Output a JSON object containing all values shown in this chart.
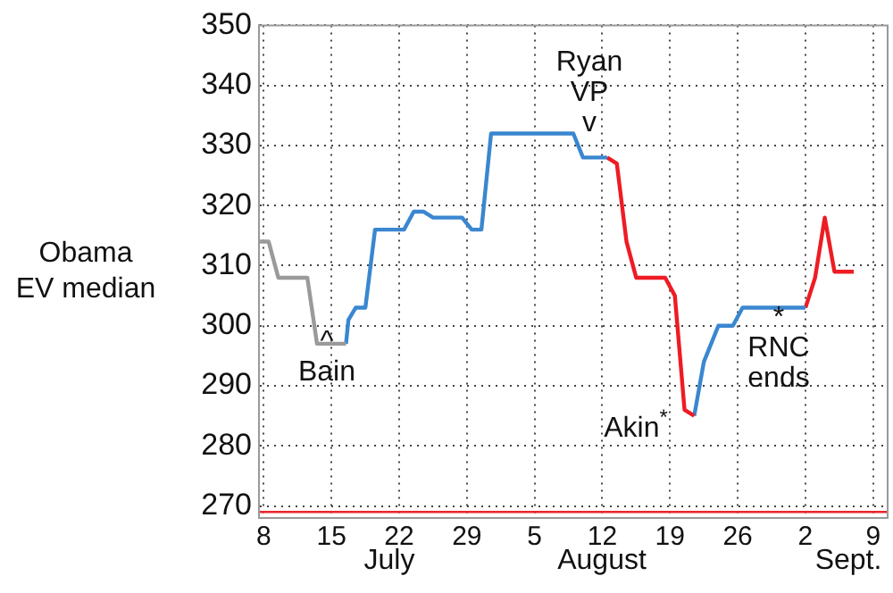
{
  "chart_data": {
    "type": "line",
    "ylabel": "Obama\nEV median",
    "series": [
      {
        "color": "#9a9a9a",
        "x": [
          "--07-07T12:00",
          "--07-08T12:00",
          "--07-09T12:00",
          "--07-12T12:00",
          "--07-13T12:00",
          "--07-16T12:00"
        ],
        "values": [
          314,
          314,
          308,
          308,
          297,
          297
        ]
      },
      {
        "color": "#3a87d0",
        "x": [
          "--07-16T12:00",
          "--07-16T18:00",
          "--07-17T12:00",
          "--07-18T12:00",
          "--07-19T12:00",
          "--07-22T12:00",
          "--07-23T12:00",
          "--07-24T12:00",
          "--07-25T12:00",
          "--07-28T12:00",
          "--07-29T12:00",
          "--07-30T12:00",
          "--07-31T12:00",
          "--08-09",
          "--08-10",
          "--08-12T12:00"
        ],
        "values": [
          297,
          301,
          303,
          303,
          316,
          316,
          319,
          319,
          318,
          318,
          316,
          316,
          332,
          332,
          328,
          328
        ]
      },
      {
        "color": "#ee1c24",
        "x": [
          "--08-12T12:00",
          "--08-13T12:00",
          "--08-14T12:00",
          "--08-15T12:00",
          "--08-18T12:00",
          "--08-19T12:00",
          "--08-20T12:00",
          "--08-21T12:00"
        ],
        "values": [
          328,
          327,
          314,
          308,
          308,
          305,
          286,
          285
        ]
      },
      {
        "color": "#3a87d0",
        "x": [
          "--08-21T12:00",
          "--08-22T12:00",
          "--08-24",
          "--08-25T12:00",
          "--08-26T12:00",
          "--09-02"
        ],
        "values": [
          285,
          294,
          300,
          300,
          303,
          303
        ]
      },
      {
        "color": "#ee1c24",
        "x": [
          "--09-02",
          "--09-03",
          "--09-04",
          "--09-05",
          "--09-07"
        ],
        "values": [
          303,
          308,
          318,
          309,
          309
        ]
      }
    ],
    "xlim": [
      "--07-07T12:00",
      "--09-10T12:00"
    ],
    "xticks": [
      {
        "value": "--07-08",
        "label": "8"
      },
      {
        "value": "--07-15",
        "label": "15"
      },
      {
        "value": "--07-22",
        "label": "22"
      },
      {
        "value": "--07-29",
        "label": "29"
      },
      {
        "value": "--08-05",
        "label": "5"
      },
      {
        "value": "--08-12",
        "label": "12"
      },
      {
        "value": "--08-19",
        "label": "19"
      },
      {
        "value": "--08-26",
        "label": "26"
      },
      {
        "value": "--09-02",
        "label": "2"
      },
      {
        "value": "--09-09",
        "label": "9"
      }
    ],
    "ylim": [
      268,
      350
    ],
    "yticks": [
      270,
      280,
      290,
      300,
      310,
      320,
      330,
      340,
      350
    ],
    "ref_lines": [
      {
        "axis": "y",
        "value": 269,
        "color": "#e8262b"
      }
    ],
    "annotations": [
      "^\nBain",
      "Ryan\nVP\nv",
      "Akin$^{*}$",
      "*\nRNC\nends",
      "July",
      "August",
      "Sept."
    ],
    "grid": true,
    "legend": false,
    "marker": "none",
    "line_style": "solid"
  }
}
